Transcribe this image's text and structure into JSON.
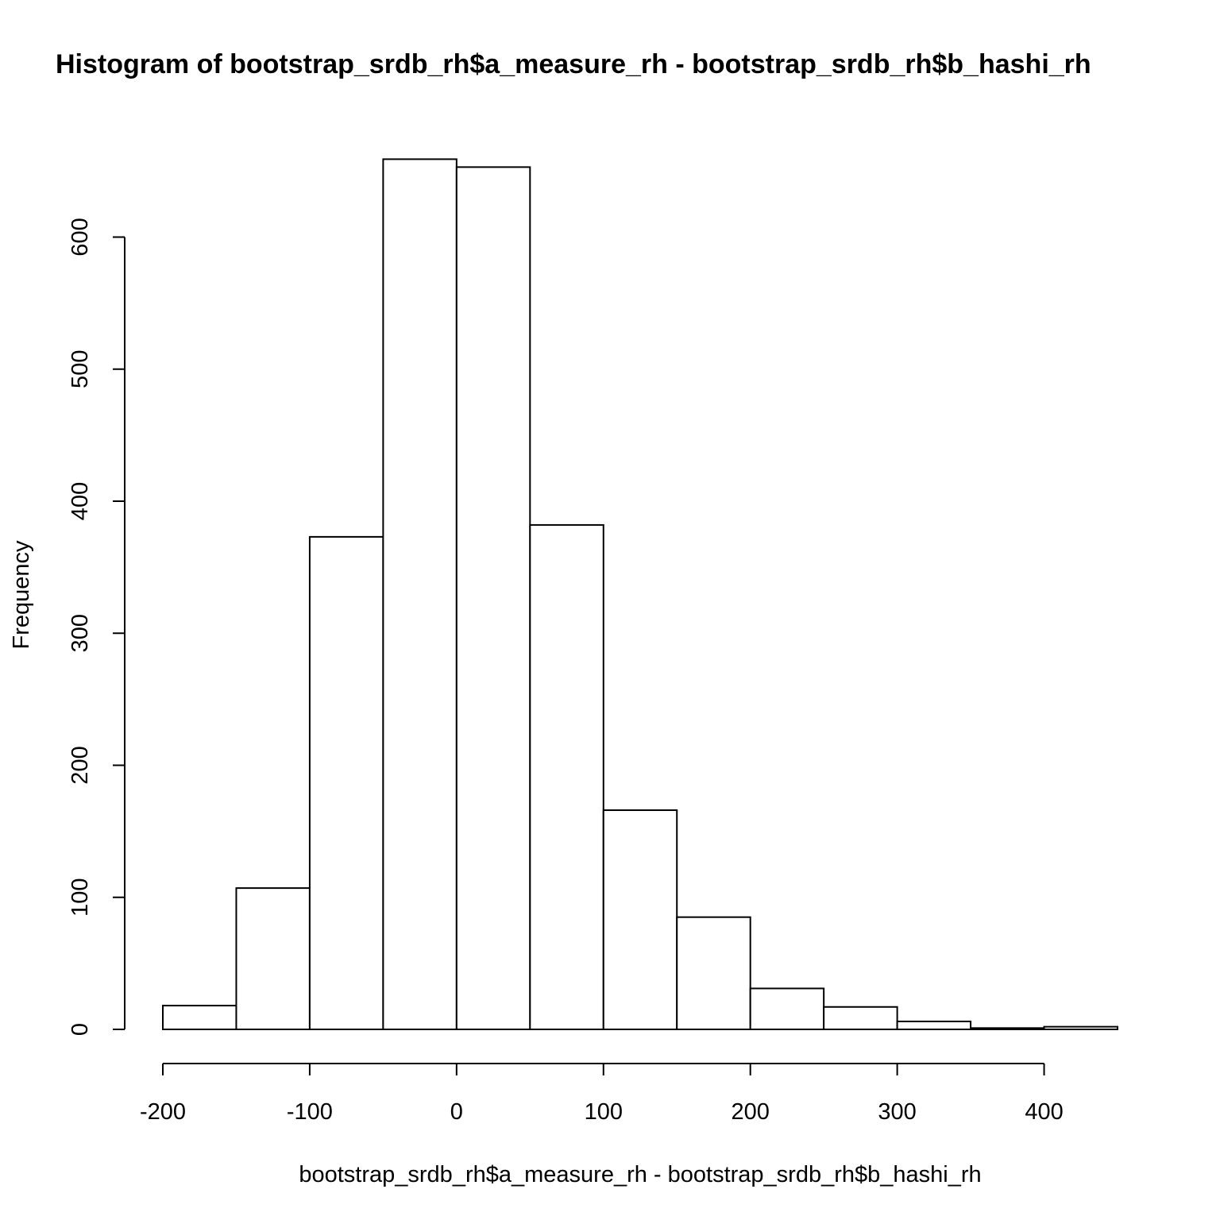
{
  "chart_data": {
    "type": "bar",
    "title": "Histogram of bootstrap_srdb_rh$a_measure_rh - bootstrap_srdb_rh$b_hashi_rh",
    "xlabel": "bootstrap_srdb_rh$a_measure_rh - bootstrap_srdb_rh$b_hashi_rh",
    "ylabel": "Frequency",
    "bin_edges": [
      -200,
      -150,
      -100,
      -50,
      0,
      50,
      100,
      150,
      200,
      250,
      300,
      350,
      400,
      450
    ],
    "values": [
      18,
      107,
      373,
      659,
      653,
      382,
      166,
      85,
      31,
      17,
      6,
      1,
      2
    ],
    "xlim": [
      -200,
      450
    ],
    "ylim": [
      0,
      660
    ],
    "x_ticks": [
      -200,
      -100,
      0,
      100,
      200,
      300,
      400
    ],
    "y_ticks": [
      0,
      100,
      200,
      300,
      400,
      500,
      600
    ],
    "x_tick_labels": [
      "-200",
      "-100",
      "0",
      "100",
      "200",
      "300",
      "400"
    ],
    "y_tick_labels": [
      "0",
      "100",
      "200",
      "300",
      "400",
      "500",
      "600"
    ],
    "grid": false
  }
}
